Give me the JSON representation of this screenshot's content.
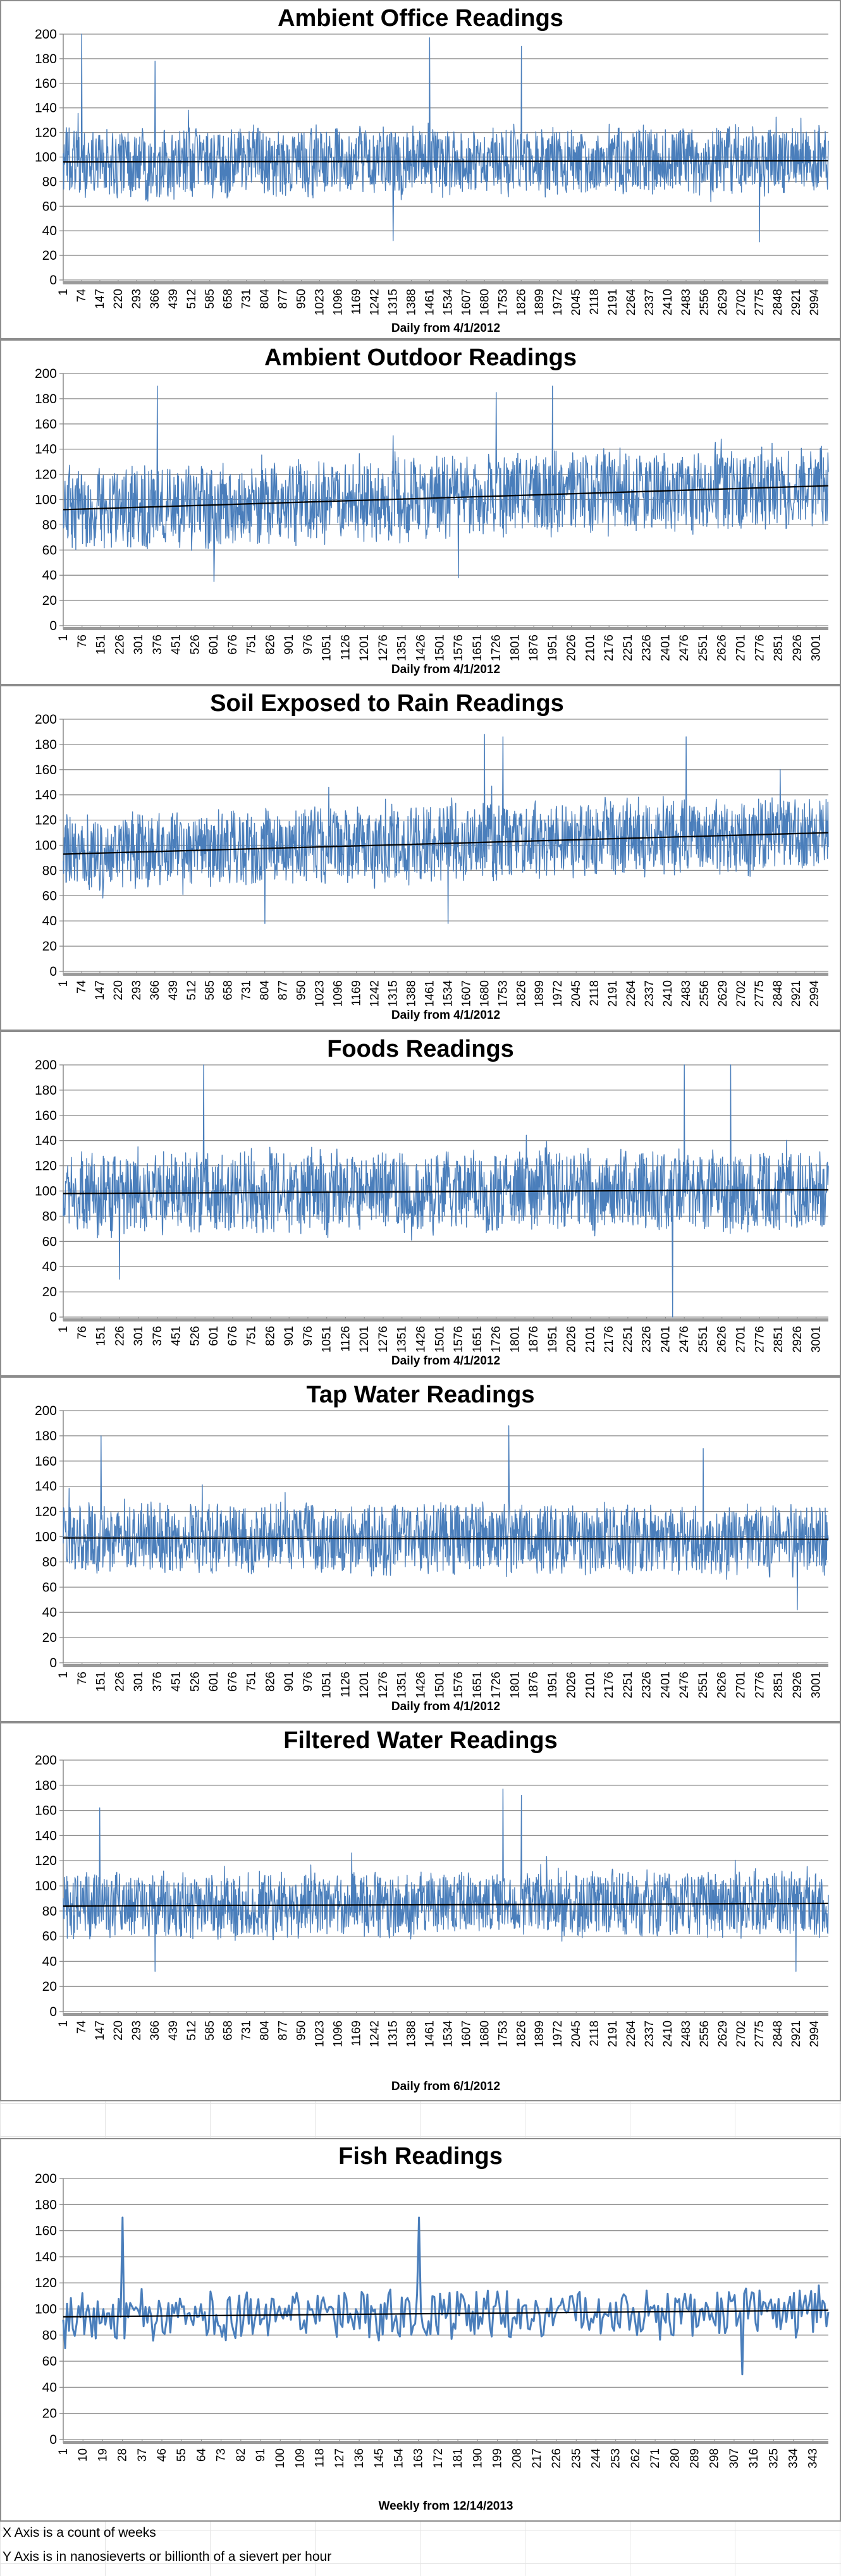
{
  "chart_data": [
    {
      "type": "line",
      "title": "Ambient Office Readings",
      "xlabel": "Daily from 4/1/2012",
      "ylabel": "",
      "ylim": [
        0,
        200
      ],
      "yticks": [
        0,
        20,
        40,
        60,
        80,
        100,
        120,
        140,
        160,
        180,
        200
      ],
      "xlim": [
        1,
        3050
      ],
      "xticks": [
        1,
        74,
        147,
        220,
        293,
        366,
        439,
        512,
        585,
        658,
        731,
        804,
        877,
        950,
        1023,
        1096,
        1169,
        1242,
        1315,
        1388,
        1461,
        1534,
        1607,
        1680,
        1753,
        1826,
        1899,
        1972,
        2045,
        2118,
        2191,
        2264,
        2337,
        2410,
        2483,
        2556,
        2629,
        2702,
        2775,
        2848,
        2921,
        2994
      ],
      "series_color": "#4a7ebb",
      "mean": 97,
      "spread": 26,
      "spikes": [
        [
          74,
          200
        ],
        [
          1461,
          197
        ],
        [
          1826,
          190
        ],
        [
          366,
          178
        ],
        [
          1315,
          32
        ],
        [
          2775,
          31
        ]
      ],
      "trend": [
        [
          1,
          96
        ],
        [
          3050,
          97
        ]
      ]
    },
    {
      "type": "line",
      "title": "Ambient Outdoor Readings",
      "xlabel": "Daily from 4/1/2012",
      "ylabel": "",
      "ylim": [
        0,
        200
      ],
      "yticks": [
        0,
        20,
        40,
        60,
        80,
        100,
        120,
        140,
        160,
        180,
        200
      ],
      "xlim": [
        1,
        3050
      ],
      "xticks": [
        1,
        76,
        151,
        226,
        301,
        376,
        451,
        526,
        601,
        676,
        751,
        826,
        901,
        976,
        1051,
        1126,
        1201,
        1276,
        1351,
        1426,
        1501,
        1576,
        1651,
        1726,
        1801,
        1876,
        1951,
        2026,
        2101,
        2176,
        2251,
        2326,
        2401,
        2476,
        2551,
        2626,
        2701,
        2776,
        2851,
        2926,
        3001
      ],
      "series_color": "#4a7ebb",
      "mean": 102,
      "spread": 30,
      "spikes": [
        [
          376,
          190
        ],
        [
          1951,
          190
        ],
        [
          1726,
          185
        ],
        [
          601,
          35
        ],
        [
          1576,
          38
        ]
      ],
      "trend": [
        [
          1,
          92
        ],
        [
          3050,
          111
        ]
      ]
    },
    {
      "type": "line",
      "title": "Soil Exposed to Rain Readings",
      "xlabel": "Daily from 4/1/2012",
      "ylabel": "",
      "ylim": [
        0,
        200
      ],
      "yticks": [
        0,
        20,
        40,
        60,
        80,
        100,
        120,
        140,
        160,
        180,
        200
      ],
      "xlim": [
        1,
        3050
      ],
      "xticks": [
        1,
        74,
        147,
        220,
        293,
        366,
        439,
        512,
        585,
        658,
        731,
        804,
        877,
        950,
        1023,
        1096,
        1169,
        1242,
        1315,
        1388,
        1461,
        1534,
        1607,
        1680,
        1753,
        1826,
        1899,
        1972,
        2045,
        2118,
        2191,
        2264,
        2337,
        2410,
        2483,
        2556,
        2629,
        2702,
        2775,
        2848,
        2921,
        2994
      ],
      "series_color": "#4a7ebb",
      "mean": 101,
      "spread": 28,
      "spikes": [
        [
          1680,
          188
        ],
        [
          1753,
          186
        ],
        [
          2483,
          186
        ],
        [
          804,
          38
        ],
        [
          1534,
          38
        ]
      ],
      "trend": [
        [
          1,
          93
        ],
        [
          3050,
          110
        ]
      ]
    },
    {
      "type": "line",
      "title": "Foods Readings",
      "xlabel": "Daily from 4/1/2012",
      "ylabel": "",
      "ylim": [
        0,
        200
      ],
      "yticks": [
        0,
        20,
        40,
        60,
        80,
        100,
        120,
        140,
        160,
        180,
        200
      ],
      "xlim": [
        1,
        3050
      ],
      "xticks": [
        1,
        76,
        151,
        226,
        301,
        376,
        451,
        526,
        601,
        676,
        751,
        826,
        901,
        976,
        1051,
        1126,
        1201,
        1276,
        1351,
        1426,
        1501,
        1576,
        1651,
        1726,
        1801,
        1876,
        1951,
        2026,
        2101,
        2176,
        2251,
        2326,
        2401,
        2476,
        2551,
        2626,
        2701,
        2776,
        2851,
        2926,
        3001
      ],
      "series_color": "#4a7ebb",
      "mean": 99,
      "spread": 30,
      "spikes": [
        [
          560,
          200
        ],
        [
          2476,
          200
        ],
        [
          2660,
          200
        ],
        [
          2430,
          0
        ],
        [
          226,
          30
        ]
      ],
      "trend": [
        [
          1,
          98
        ],
        [
          3050,
          101
        ]
      ]
    },
    {
      "type": "line",
      "title": "Tap Water Readings",
      "xlabel": "Daily from 4/1/2012",
      "ylabel": "",
      "ylim": [
        0,
        200
      ],
      "yticks": [
        0,
        20,
        40,
        60,
        80,
        100,
        120,
        140,
        160,
        180,
        200
      ],
      "xlim": [
        1,
        3050
      ],
      "xticks": [
        1,
        76,
        151,
        226,
        301,
        376,
        451,
        526,
        601,
        676,
        751,
        826,
        901,
        976,
        1051,
        1126,
        1201,
        1276,
        1351,
        1426,
        1501,
        1576,
        1651,
        1726,
        1801,
        1876,
        1951,
        2026,
        2101,
        2176,
        2251,
        2326,
        2401,
        2476,
        2551,
        2626,
        2701,
        2776,
        2851,
        2926,
        3001
      ],
      "series_color": "#4a7ebb",
      "mean": 99,
      "spread": 26,
      "spikes": [
        [
          1776,
          188
        ],
        [
          151,
          180
        ],
        [
          2551,
          170
        ],
        [
          2926,
          42
        ]
      ],
      "trend": [
        [
          1,
          99
        ],
        [
          3050,
          98
        ]
      ]
    },
    {
      "type": "line",
      "title": "Filtered Water Readings",
      "xlabel": "Daily from 6/1/2012",
      "ylabel": "",
      "ylim": [
        0,
        200
      ],
      "yticks": [
        0,
        20,
        40,
        60,
        80,
        100,
        120,
        140,
        160,
        180,
        200
      ],
      "xlim": [
        1,
        3050
      ],
      "xticks": [
        1,
        74,
        147,
        220,
        293,
        366,
        439,
        512,
        585,
        658,
        731,
        804,
        877,
        950,
        1023,
        1096,
        1169,
        1242,
        1315,
        1388,
        1461,
        1534,
        1607,
        1680,
        1753,
        1826,
        1899,
        1972,
        2045,
        2118,
        2191,
        2264,
        2337,
        2410,
        2483,
        2556,
        2629,
        2702,
        2775,
        2848,
        2921,
        2994
      ],
      "series_color": "#4a7ebb",
      "mean": 85,
      "spread": 24,
      "spikes": [
        [
          1753,
          177
        ],
        [
          1826,
          172
        ],
        [
          147,
          162
        ],
        [
          366,
          32
        ],
        [
          2921,
          32
        ]
      ],
      "trend": [
        [
          1,
          84
        ],
        [
          3050,
          86
        ]
      ]
    },
    {
      "type": "line",
      "title": "Fish Readings",
      "xlabel": "Weekly from 12/14/2013",
      "ylabel": "",
      "ylim": [
        0,
        200
      ],
      "yticks": [
        0,
        20,
        40,
        60,
        80,
        100,
        120,
        140,
        160,
        180,
        200
      ],
      "xlim": [
        1,
        350
      ],
      "xticks": [
        1,
        10,
        19,
        28,
        37,
        46,
        55,
        64,
        73,
        82,
        91,
        100,
        109,
        118,
        127,
        136,
        145,
        154,
        163,
        172,
        181,
        190,
        199,
        208,
        217,
        226,
        235,
        244,
        253,
        262,
        271,
        280,
        289,
        298,
        307,
        316,
        325,
        334,
        343
      ],
      "series_color": "#4a7ebb",
      "mean": 97,
      "spread": 18,
      "spikes": [
        [
          28,
          170
        ],
        [
          163,
          170
        ],
        [
          2,
          70
        ],
        [
          311,
          50
        ]
      ],
      "trend": [
        [
          1,
          94
        ],
        [
          350,
          99
        ]
      ]
    }
  ],
  "notes": [
    "X Axis is a count of weeks",
    "Y Axis is in nanosieverts or billionth of a sievert per hour"
  ]
}
